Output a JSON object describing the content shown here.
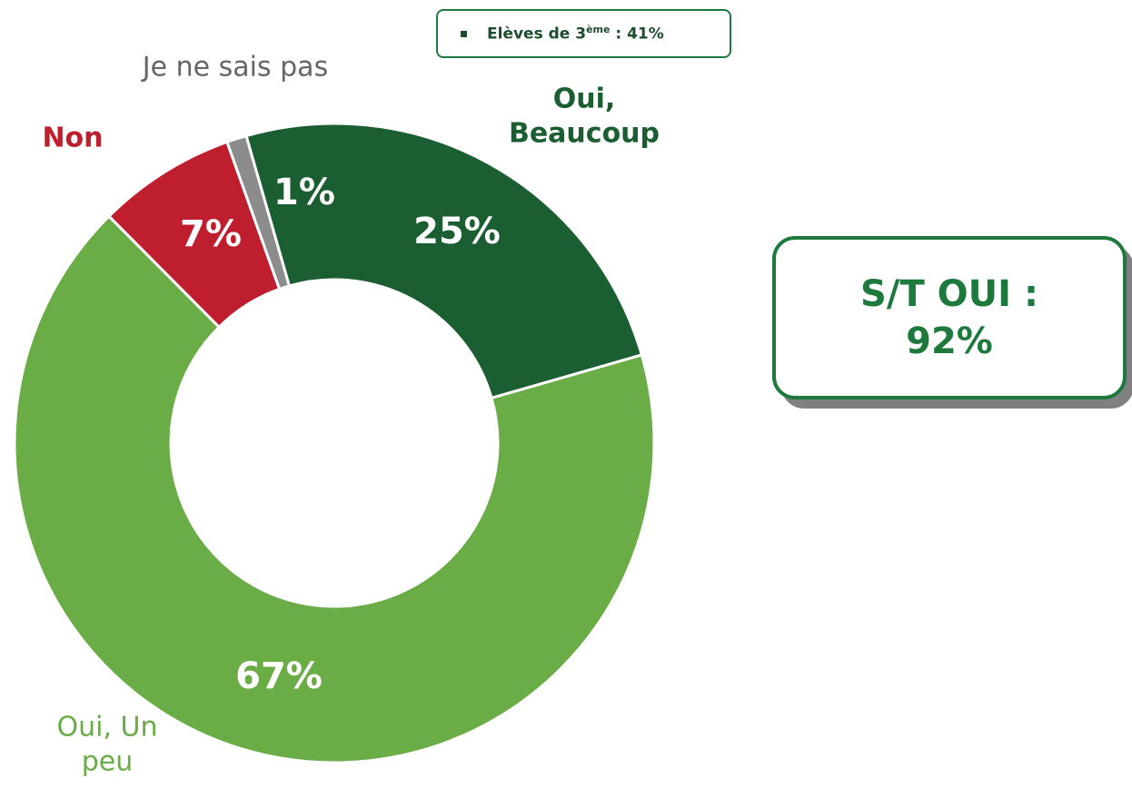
{
  "chart_data": {
    "type": "donut",
    "categories": [
      "Oui, Beaucoup",
      "Oui, Un peu",
      "Non",
      "Je ne sais pas"
    ],
    "values": [
      25,
      67,
      7,
      1
    ],
    "value_labels": [
      "25%",
      "67%",
      "7%",
      "1%"
    ],
    "colors": [
      "#1b5e32",
      "#6aac46",
      "#be1e2d",
      "#8c8c8c"
    ],
    "annotations": {
      "top_box": [
        "Elèves de 3",
        "ème",
        " : 41%"
      ],
      "total_box": "S/T OUI : 92%"
    }
  }
}
